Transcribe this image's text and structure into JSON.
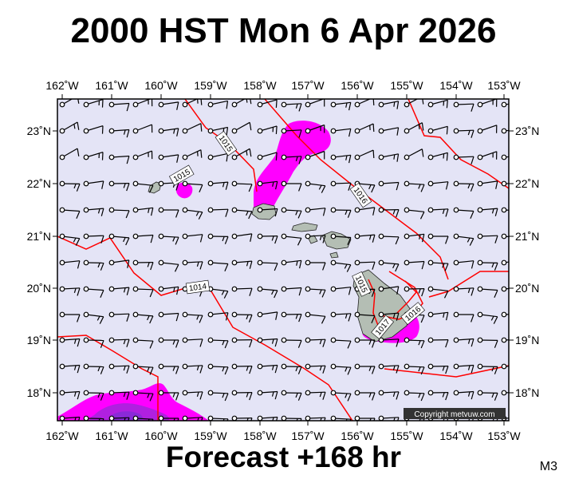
{
  "header": {
    "title": "2000 HST Mon 6 Apr 2026"
  },
  "footer": {
    "forecast": "Forecast +168 hr",
    "model": "M3"
  },
  "map": {
    "copyright": "Copyright metvuw.com",
    "colors": {
      "background": "#e4e4f6",
      "isobar": "#ff0000",
      "rain_light": "#ff00ff",
      "rain_heavy": "#9933cc",
      "land": "#b4beb4"
    },
    "longitude_labels": [
      "162˚W",
      "161˚W",
      "160˚W",
      "159˚W",
      "158˚W",
      "157˚W",
      "156˚W",
      "155˚W",
      "154˚W",
      "153˚W"
    ],
    "latitude_labels": [
      "23˚N",
      "22˚N",
      "21˚N",
      "20˚N",
      "19˚N",
      "18˚N"
    ],
    "isobar_labels": [
      "1015",
      "1015",
      "1016",
      "1014",
      "1015",
      "1017",
      "1016"
    ]
  }
}
